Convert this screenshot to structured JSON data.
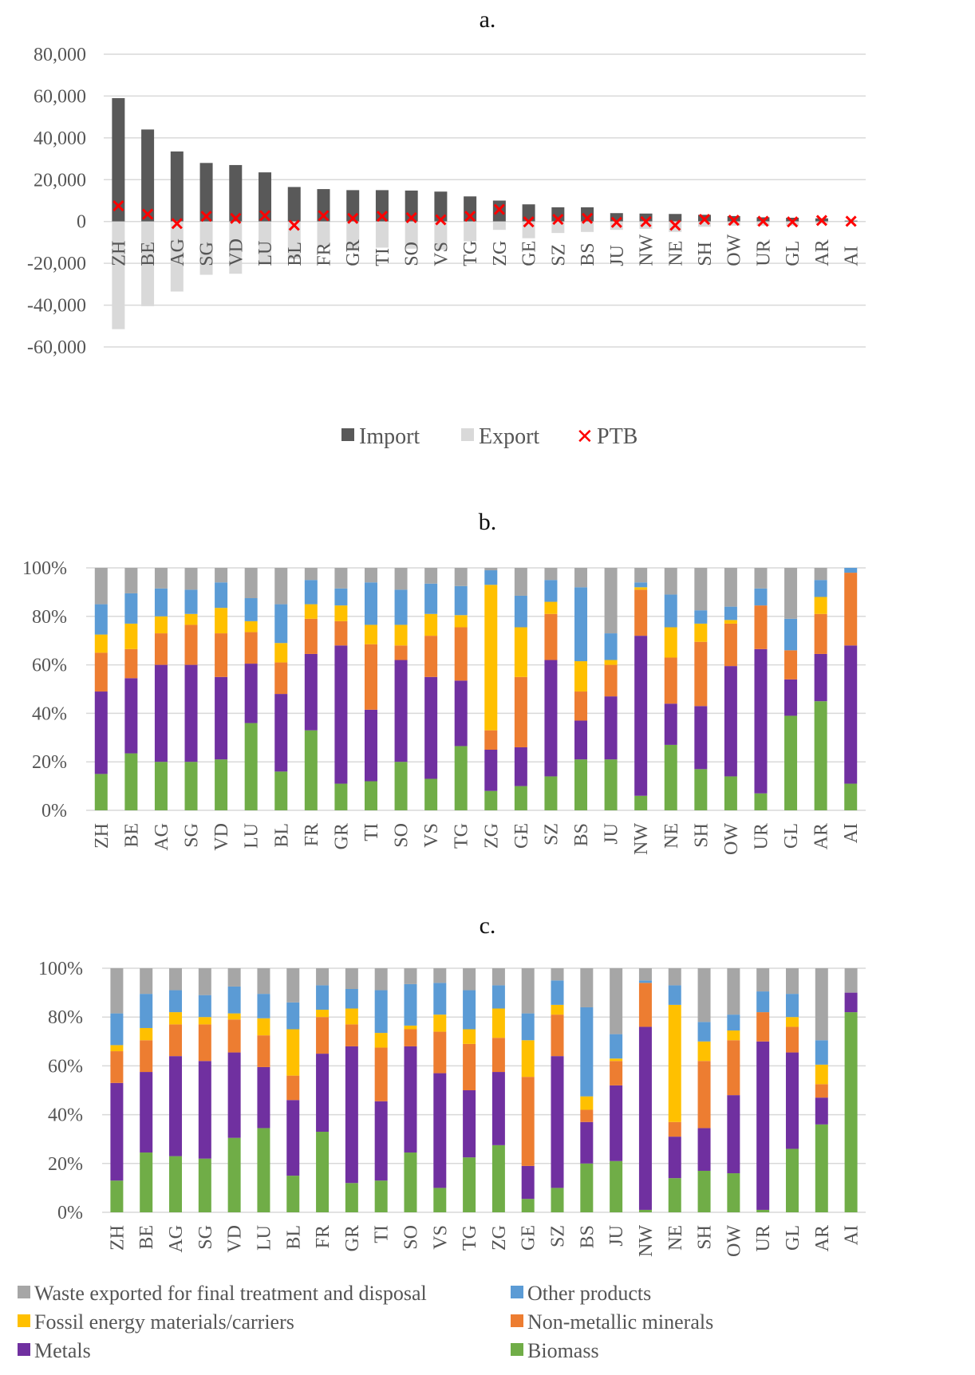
{
  "chart_data": [
    {
      "type": "bar",
      "panel": "a.",
      "title": "",
      "categories": [
        "ZH",
        "BE",
        "AG",
        "SG",
        "VD",
        "LU",
        "BL",
        "FR",
        "GR",
        "TI",
        "SO",
        "VS",
        "TG",
        "ZG",
        "GE",
        "SZ",
        "BS",
        "JU",
        "NW",
        "NE",
        "SH",
        "OW",
        "UR",
        "GL",
        "AR",
        "AI"
      ],
      "yticks": [
        "80,000",
        "60,000",
        "40,000",
        "20,000",
        "0",
        "-20,000",
        "-40,000",
        "-60,000"
      ],
      "ylim": [
        -60000,
        80000
      ],
      "grid": true,
      "legend_position": "bottom",
      "series": [
        {
          "name": "Import",
          "kind": "bar",
          "color": "#595959",
          "values": [
            59000,
            44000,
            33500,
            28000,
            27000,
            23500,
            16500,
            15500,
            15000,
            15000,
            14800,
            14300,
            12000,
            10000,
            8200,
            6800,
            6800,
            4000,
            3800,
            3600,
            3200,
            2600,
            2000,
            1800,
            1500,
            400
          ]
        },
        {
          "name": "Export",
          "kind": "bar",
          "color": "#d9d9d9",
          "values": [
            -51500,
            -40500,
            -33500,
            -25500,
            -25000,
            -20500,
            -18000,
            -12000,
            -13000,
            -12500,
            -13000,
            -13500,
            -9500,
            -4000,
            -8000,
            -5500,
            -5000,
            -4000,
            -3500,
            -5000,
            -2500,
            -2000,
            -2000,
            -2000,
            -1000,
            -300
          ]
        },
        {
          "name": "PTB",
          "kind": "marker",
          "color": "#ff0000",
          "values": [
            7500,
            3500,
            -1000,
            2500,
            1500,
            2800,
            -1800,
            2800,
            1500,
            2500,
            1800,
            800,
            2500,
            5800,
            -200,
            1000,
            1500,
            -400,
            -100,
            -1800,
            1000,
            600,
            100,
            -200,
            500,
            100
          ]
        }
      ]
    },
    {
      "type": "bar",
      "stacked": true,
      "panel": "b.",
      "title": "",
      "categories": [
        "ZH",
        "BE",
        "AG",
        "SG",
        "VD",
        "LU",
        "BL",
        "FR",
        "GR",
        "TI",
        "SO",
        "VS",
        "TG",
        "ZG",
        "GE",
        "SZ",
        "BS",
        "JU",
        "NW",
        "NE",
        "SH",
        "OW",
        "UR",
        "GL",
        "AR",
        "AI"
      ],
      "yticks": [
        "100%",
        "80%",
        "60%",
        "40%",
        "20%",
        "0%"
      ],
      "ylim": [
        0,
        100
      ],
      "grid": true,
      "series": [
        {
          "name": "Biomass",
          "color": "#70ad47",
          "values": [
            15,
            23.5,
            20,
            20,
            21,
            36,
            16,
            33,
            11,
            12,
            20,
            13,
            26.5,
            8,
            10,
            14,
            21,
            21,
            6,
            27,
            17,
            14,
            7,
            39,
            45,
            11
          ]
        },
        {
          "name": "Metals",
          "color": "#7030a0",
          "values": [
            34,
            31,
            40,
            40,
            34,
            24.5,
            32,
            31.5,
            57,
            29.5,
            42,
            42,
            27,
            17,
            16,
            48,
            16,
            26,
            66,
            17,
            26,
            45.5,
            59.5,
            15,
            19.5,
            57
          ]
        },
        {
          "name": "Non-metallic minerals",
          "color": "#ed7d31",
          "values": [
            16,
            12,
            13,
            16.5,
            18,
            13,
            13,
            14.5,
            10,
            27,
            6,
            17,
            22,
            8,
            29,
            19,
            12,
            13,
            19,
            19,
            26.5,
            17.5,
            18,
            12,
            16.5,
            30
          ]
        },
        {
          "name": "Fossil energy materials/carriers",
          "color": "#ffc000",
          "values": [
            7.5,
            10.5,
            7,
            4.5,
            10.5,
            4.5,
            8,
            6,
            6.5,
            8,
            8.5,
            9,
            5,
            60,
            20.5,
            5,
            12.5,
            2,
            1,
            12.5,
            7.5,
            1.5,
            0,
            0,
            7,
            0
          ]
        },
        {
          "name": "Other products",
          "color": "#5b9bd5",
          "values": [
            12.5,
            12.5,
            11.5,
            10,
            10.5,
            9.5,
            16,
            10,
            7,
            17.5,
            14.5,
            12.5,
            12,
            6,
            13,
            9,
            30.5,
            11,
            2,
            13.5,
            5.5,
            5.5,
            7,
            13,
            7,
            2
          ]
        },
        {
          "name": "Waste exported for final treatment and disposal",
          "color": "#a6a6a6",
          "values": [
            15,
            10.5,
            8.5,
            9,
            6,
            12.5,
            15,
            5,
            8.5,
            6,
            9,
            6.5,
            7.5,
            1,
            11.5,
            5,
            8,
            27,
            6,
            11,
            17.5,
            16,
            8.5,
            21,
            5,
            0
          ]
        }
      ]
    },
    {
      "type": "bar",
      "stacked": true,
      "panel": "c.",
      "title": "",
      "categories": [
        "ZH",
        "BE",
        "AG",
        "SG",
        "VD",
        "LU",
        "BL",
        "FR",
        "GR",
        "TI",
        "SO",
        "VS",
        "TG",
        "ZG",
        "GE",
        "SZ",
        "BS",
        "JU",
        "NW",
        "NE",
        "SH",
        "OW",
        "UR",
        "GL",
        "AR",
        "AI"
      ],
      "yticks": [
        "100%",
        "80%",
        "60%",
        "40%",
        "20%",
        "0%"
      ],
      "ylim": [
        0,
        100
      ],
      "grid": true,
      "legend_position": "bottom",
      "series": [
        {
          "name": "Biomass",
          "color": "#70ad47",
          "values": [
            13,
            24.5,
            23,
            22,
            30.5,
            34.5,
            15,
            33,
            12,
            13,
            24.5,
            10,
            22.5,
            27.5,
            5.5,
            10,
            20,
            21,
            1,
            14,
            17,
            16,
            1,
            26,
            36,
            82
          ]
        },
        {
          "name": "Metals",
          "color": "#7030a0",
          "values": [
            40,
            33,
            41,
            40,
            35,
            25,
            31,
            32,
            56,
            32.5,
            43.5,
            47,
            27.5,
            30,
            13.5,
            54,
            17,
            31,
            75,
            17,
            17.5,
            32,
            69,
            39.5,
            11,
            8
          ]
        },
        {
          "name": "Non-metallic minerals",
          "color": "#ed7d31",
          "values": [
            13,
            13,
            13,
            15,
            13.5,
            13,
            10,
            15,
            9,
            22,
            7,
            17,
            19,
            14,
            36.5,
            17,
            5,
            10,
            18,
            6,
            27.5,
            22.5,
            12,
            10.5,
            5.5,
            0
          ]
        },
        {
          "name": "Fossil energy materials/carriers",
          "color": "#ffc000",
          "values": [
            2.5,
            5,
            5,
            3,
            2.5,
            7,
            19,
            3,
            6.5,
            6,
            1.5,
            7,
            6,
            12,
            15,
            4,
            5.5,
            1,
            0,
            48,
            8,
            4,
            0,
            4,
            8,
            0
          ]
        },
        {
          "name": "Other products",
          "color": "#5b9bd5",
          "values": [
            13,
            14,
            9,
            9,
            11,
            10,
            11,
            10,
            8,
            17.5,
            17,
            13,
            16,
            9.5,
            11,
            10,
            36.5,
            10,
            1,
            8,
            8,
            6.5,
            8.5,
            9.5,
            10,
            0
          ]
        },
        {
          "name": "Waste exported for final treatment and disposal",
          "color": "#a6a6a6",
          "values": [
            18.5,
            10.5,
            9,
            11,
            7.5,
            10.5,
            14,
            7,
            8.5,
            9,
            6.5,
            6,
            9,
            7,
            18.5,
            5,
            16,
            27,
            5,
            7,
            22,
            19,
            9.5,
            10.5,
            29.5,
            10
          ]
        }
      ]
    }
  ]
}
